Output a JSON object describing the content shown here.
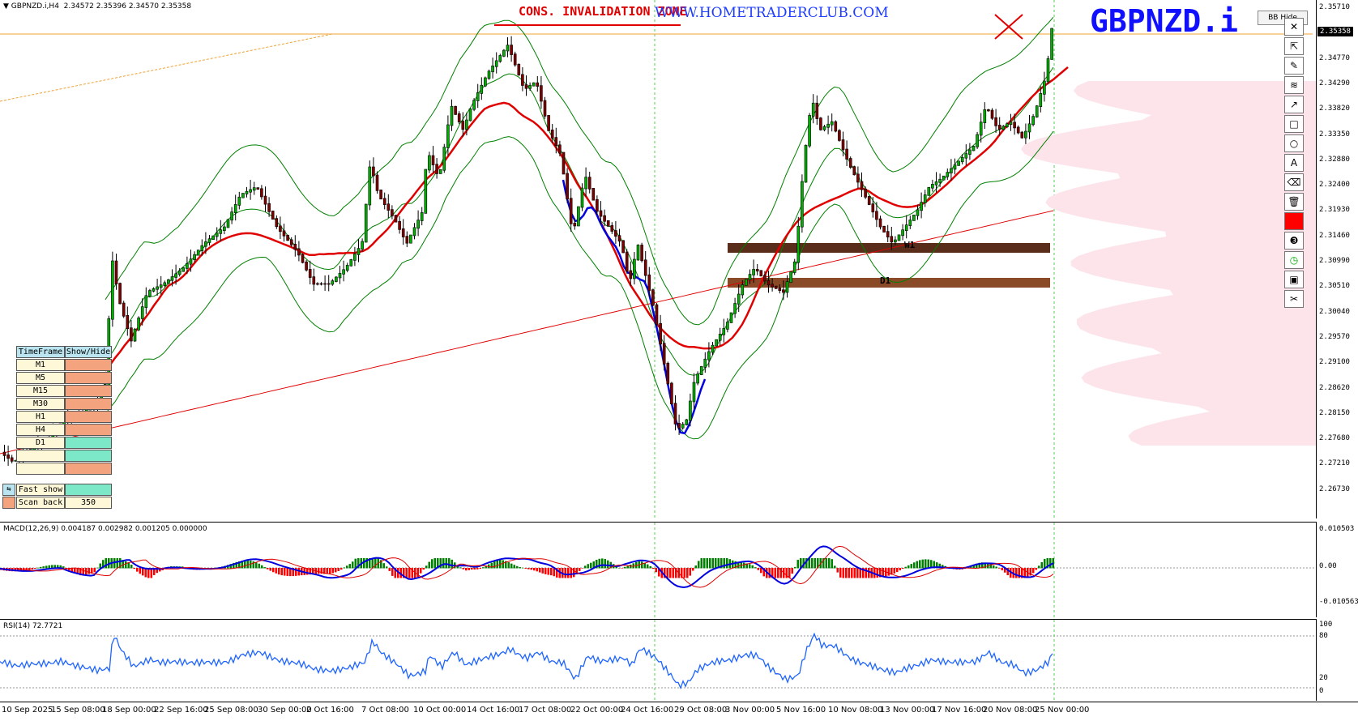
{
  "symbol": "GBPNZD.i,H4",
  "ohlc": "2.34572 2.35396 2.34570 2.35358",
  "title_text": "CONS. INVALIDATION ZONE",
  "watermark": "WWW.HOMETRADERCLUB.COM",
  "symbol_big": "GBPNZD.i",
  "bb_hide_label": "BB Hide",
  "current_price": "2.35358",
  "price_ticks": [
    "2.35710",
    "2.35358",
    "2.34770",
    "2.34290",
    "2.33820",
    "2.33350",
    "2.32880",
    "2.32400",
    "2.31930",
    "2.31460",
    "2.30990",
    "2.30510",
    "2.30040",
    "2.29570",
    "2.29100",
    "2.28620",
    "2.28150",
    "2.27680",
    "2.27210",
    "2.26730"
  ],
  "macd": {
    "label": "MACD(12,26,9) 0.004187 0.002982 0.001205 0.000000",
    "ticks": [
      "0.010503",
      "0.00",
      "-0.010563"
    ]
  },
  "rsi": {
    "label": "RSI(14) 72.7721",
    "ticks": [
      "100",
      "80",
      "20",
      "0"
    ]
  },
  "time_labels": [
    "10 Sep 2025",
    "15 Sep 08:00",
    "18 Sep 00:00",
    "22 Sep 16:00",
    "25 Sep 08:00",
    "30 Sep 00:00",
    "2 Oct 16:00",
    "7 Oct 08:00",
    "10 Oct 00:00",
    "14 Oct 16:00",
    "17 Oct 08:00",
    "22 Oct 00:00",
    "24 Oct 16:00",
    "29 Oct 08:00",
    "3 Nov 00:00",
    "5 Nov 16:00",
    "10 Nov 08:00",
    "13 Nov 00:00",
    "17 Nov 16:00",
    "20 Nov 08:00",
    "25 Nov 00:00"
  ],
  "levels": {
    "upper": "W1",
    "lower": "D1"
  },
  "tf_panel": {
    "header": [
      "TimeFrame",
      "Show/Hide"
    ],
    "rows": [
      {
        "tf": "M1",
        "state": "hide"
      },
      {
        "tf": "M5",
        "state": "hide"
      },
      {
        "tf": "M15",
        "state": "hide"
      },
      {
        "tf": "M30",
        "state": "hide"
      },
      {
        "tf": "H1",
        "state": "hide"
      },
      {
        "tf": "H4",
        "state": "hide"
      },
      {
        "tf": "D1",
        "state": "show"
      },
      {
        "tf": "",
        "state": "show"
      },
      {
        "tf": "",
        "state": "hide"
      }
    ],
    "fast_show": "Fast show",
    "scan_back": "Scan back",
    "scan_back_value": "350"
  },
  "toolbar": [
    "close-icon",
    "cursor-icon",
    "pencil-icon",
    "wave-icon",
    "arrow-icon",
    "rectangle-icon",
    "circle-icon",
    "text-icon",
    "eraser-icon",
    "trash-icon",
    "red-color-swatch",
    "number-3-icon",
    "clock-icon",
    "save-icon",
    "scissors-icon"
  ],
  "colors": {
    "bull": "#000000",
    "bear": "#000000",
    "bb": "#008000",
    "ema": "#e00000",
    "macd": "#0000e0",
    "signal": "#e00000",
    "rsi": "#1e64ff",
    "level": "#6b3a1f"
  }
}
